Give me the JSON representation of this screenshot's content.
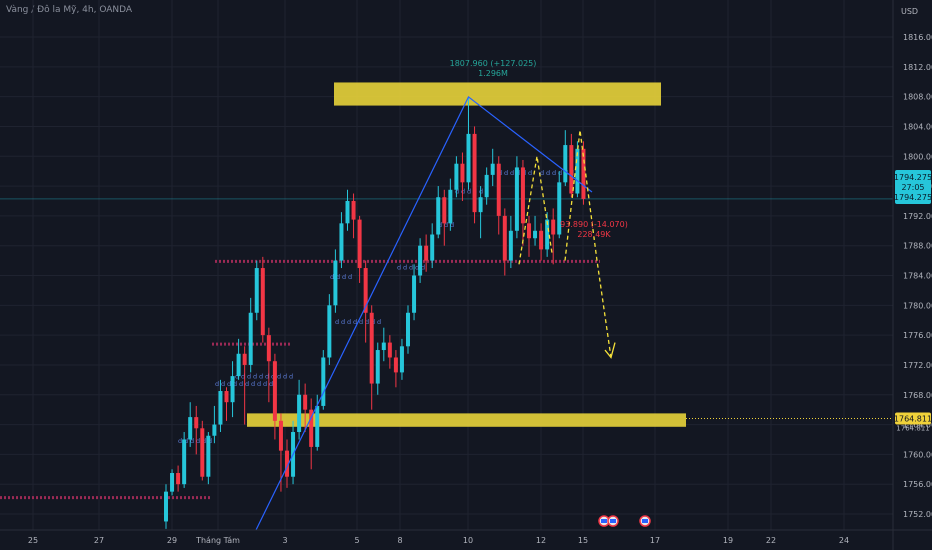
{
  "header": {
    "title": "Vàng / Đô la Mỹ, 4h, OANDA",
    "currency": "USD"
  },
  "chart_data": {
    "type": "candlestick",
    "ylim": [
      1750,
      1820
    ],
    "y_ticks": [
      1752,
      1756,
      1760,
      1764,
      1768,
      1772,
      1776,
      1780,
      1784,
      1788,
      1792,
      1796,
      1800,
      1804,
      1808,
      1812,
      1816
    ],
    "x_ticks": [
      "25",
      "27",
      "29",
      "Tháng Tám",
      "3",
      "5",
      "8",
      "10",
      "12",
      "15",
      "17",
      "19",
      "22",
      "24"
    ],
    "price_labels": {
      "current": "1794.275",
      "countdown": "27:05",
      "current_low": "1794.275",
      "level": "1764.811",
      "level_under": "1764.811"
    },
    "annotations": {
      "peak_value": "1807.960 (+127.025)",
      "peak_volume": "1.296M",
      "drop_value": "93.890 (-14.070)",
      "drop_volume": "228.49K"
    },
    "zones": [
      {
        "name": "resistance",
        "from": 1806.8,
        "to": 1809.9
      },
      {
        "name": "support",
        "from": 1763.7,
        "to": 1765.5
      }
    ],
    "colors": {
      "up": "#26c6da",
      "down": "#f23645",
      "zone": "#e8d33a",
      "trendline": "#2962ff",
      "projection": "#f5e13a",
      "grid": "#1f2330",
      "dotted_level": "#9b2a55"
    },
    "candles": [
      [
        1751,
        1755,
        1750,
        1756
      ],
      [
        1755,
        1757.5,
        1754.5,
        1758
      ],
      [
        1757.5,
        1756,
        1755,
        1758.5
      ],
      [
        1756,
        1762,
        1755.5,
        1763
      ],
      [
        1762,
        1765,
        1761,
        1767
      ],
      [
        1765,
        1763.5,
        1760,
        1766.5
      ],
      [
        1763.5,
        1757,
        1756.5,
        1764.5
      ],
      [
        1757,
        1762.5,
        1756,
        1763
      ],
      [
        1762.5,
        1764,
        1761.5,
        1766.5
      ],
      [
        1764,
        1768.5,
        1763,
        1770
      ],
      [
        1768.5,
        1767,
        1764.5,
        1769
      ],
      [
        1767,
        1770.5,
        1765,
        1772.5
      ],
      [
        1770.5,
        1773.5,
        1770,
        1775.5
      ],
      [
        1773.5,
        1772,
        1764,
        1774.5
      ],
      [
        1772,
        1779,
        1771,
        1781
      ],
      [
        1779,
        1785,
        1778,
        1786
      ],
      [
        1785,
        1776,
        1775,
        1786.5
      ],
      [
        1776,
        1772.5,
        1767,
        1777
      ],
      [
        1772.5,
        1764.5,
        1762,
        1773.5
      ],
      [
        1764.5,
        1760.5,
        1755,
        1765.5
      ],
      [
        1760.5,
        1757,
        1755.5,
        1762
      ],
      [
        1757,
        1763,
        1756,
        1764.5
      ],
      [
        1763,
        1768,
        1762,
        1770
      ],
      [
        1768,
        1766,
        1763,
        1769.5
      ],
      [
        1766,
        1761,
        1758,
        1767.5
      ],
      [
        1761,
        1766.5,
        1760.5,
        1768
      ],
      [
        1766.5,
        1773,
        1766,
        1774
      ],
      [
        1773,
        1780,
        1772,
        1781.5
      ],
      [
        1780,
        1786,
        1779,
        1787.5
      ],
      [
        1786,
        1791,
        1785,
        1792.5
      ],
      [
        1791,
        1794,
        1790,
        1795.5
      ],
      [
        1794,
        1791.5,
        1789,
        1795
      ],
      [
        1791.5,
        1785,
        1783,
        1792
      ],
      [
        1785,
        1779,
        1775,
        1786
      ],
      [
        1779,
        1769.5,
        1766,
        1780
      ],
      [
        1769.5,
        1774,
        1768,
        1775
      ],
      [
        1774,
        1775,
        1772.5,
        1777
      ],
      [
        1775,
        1773,
        1771.5,
        1776
      ],
      [
        1773,
        1771,
        1769,
        1774
      ],
      [
        1771,
        1774.5,
        1770,
        1775.5
      ],
      [
        1774.5,
        1779,
        1773.5,
        1780
      ],
      [
        1779,
        1784,
        1778,
        1785.5
      ],
      [
        1784,
        1788,
        1783,
        1789
      ],
      [
        1788,
        1786,
        1784.5,
        1789.5
      ],
      [
        1786,
        1789.5,
        1785,
        1791
      ],
      [
        1789.5,
        1794.5,
        1789,
        1796
      ],
      [
        1794.5,
        1791,
        1788,
        1795.5
      ],
      [
        1791,
        1795.5,
        1790,
        1797
      ],
      [
        1795.5,
        1799,
        1794.5,
        1800
      ],
      [
        1799,
        1796.5,
        1794,
        1800.5
      ],
      [
        1796.5,
        1803,
        1795.5,
        1807.96
      ],
      [
        1803,
        1792.5,
        1791,
        1804
      ],
      [
        1792.5,
        1794.5,
        1789,
        1796
      ],
      [
        1794.5,
        1797.5,
        1793.5,
        1798.5
      ],
      [
        1797.5,
        1799,
        1796,
        1801
      ],
      [
        1799,
        1792,
        1789.5,
        1800
      ],
      [
        1792,
        1786,
        1784,
        1793
      ],
      [
        1786,
        1790,
        1785,
        1792
      ],
      [
        1790,
        1798.5,
        1789,
        1800
      ],
      [
        1798.5,
        1791,
        1788,
        1799.5
      ],
      [
        1791,
        1789,
        1786.5,
        1792
      ],
      [
        1789,
        1790,
        1788,
        1792
      ],
      [
        1790,
        1787.5,
        1786,
        1791
      ],
      [
        1787.5,
        1791.5,
        1786.5,
        1792.5
      ],
      [
        1791.5,
        1789.5,
        1785.5,
        1793
      ],
      [
        1789.5,
        1796.5,
        1789,
        1798
      ],
      [
        1796.5,
        1801.5,
        1796,
        1803.5
      ],
      [
        1801.5,
        1795,
        1794.5,
        1803
      ],
      [
        1795,
        1801,
        1794.5,
        1802
      ],
      [
        1801,
        1794.275,
        1793.5,
        1802
      ]
    ]
  }
}
